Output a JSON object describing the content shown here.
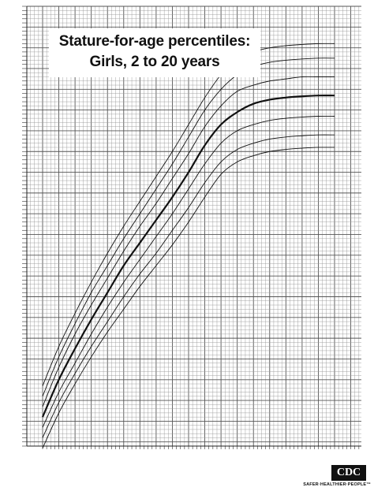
{
  "chart_data": {
    "type": "line",
    "title": "Stature-for-age percentiles:",
    "subtitle": "Girls, 2 to 20 years",
    "xlabel": "",
    "ylabel": "",
    "grid": true,
    "xlim": [
      2,
      20
    ],
    "ylim": [
      79,
      185
    ],
    "x": [
      2,
      3,
      4,
      5,
      6,
      7,
      8,
      9,
      10,
      11,
      12,
      13,
      14,
      15,
      16,
      17,
      18,
      19,
      20
    ],
    "series": [
      {
        "values": [
          78.5,
          87.0,
          94.0,
          100.5,
          106.5,
          112.0,
          117.5,
          122.5,
          127.5,
          133.0,
          139.0,
          144.5,
          147.5,
          149.0,
          150.0,
          150.5,
          150.8,
          151.0,
          151.0
        ],
        "emphasis": false
      },
      {
        "values": [
          81.0,
          89.5,
          96.5,
          103.0,
          109.0,
          115.0,
          120.5,
          125.5,
          131.0,
          136.5,
          142.5,
          147.5,
          150.5,
          152.0,
          153.0,
          153.5,
          153.8,
          154.0,
          154.0
        ],
        "emphasis": false
      },
      {
        "values": [
          83.5,
          92.0,
          99.0,
          106.0,
          112.5,
          118.5,
          124.0,
          129.5,
          135.0,
          141.0,
          147.0,
          152.0,
          155.0,
          156.5,
          157.5,
          158.0,
          158.3,
          158.5,
          158.5
        ],
        "emphasis": false
      },
      {
        "values": [
          86.0,
          95.0,
          102.5,
          109.5,
          116.0,
          122.5,
          128.0,
          133.5,
          139.0,
          145.0,
          151.5,
          156.5,
          159.5,
          161.5,
          162.5,
          163.0,
          163.3,
          163.5,
          163.5
        ],
        "emphasis": true
      },
      {
        "values": [
          88.5,
          98.0,
          106.0,
          113.0,
          119.5,
          126.0,
          132.0,
          137.5,
          143.5,
          149.5,
          156.0,
          161.0,
          164.5,
          166.0,
          167.0,
          167.5,
          168.0,
          168.0,
          168.0
        ],
        "emphasis": false
      },
      {
        "values": [
          91.0,
          100.5,
          108.5,
          116.0,
          122.5,
          129.0,
          135.0,
          141.0,
          147.0,
          153.5,
          160.0,
          165.0,
          168.5,
          170.5,
          171.5,
          172.0,
          172.3,
          172.5,
          172.5
        ],
        "emphasis": false
      },
      {
        "values": [
          93.5,
          103.0,
          111.0,
          118.5,
          125.5,
          132.0,
          138.0,
          144.0,
          150.0,
          156.5,
          163.0,
          168.5,
          172.0,
          174.0,
          175.0,
          175.5,
          175.8,
          176.0,
          176.0
        ],
        "emphasis": false
      }
    ]
  },
  "logo": {
    "mark": "CDC",
    "tagline": "SAFER·HEALTHIER·PEOPLE™"
  }
}
